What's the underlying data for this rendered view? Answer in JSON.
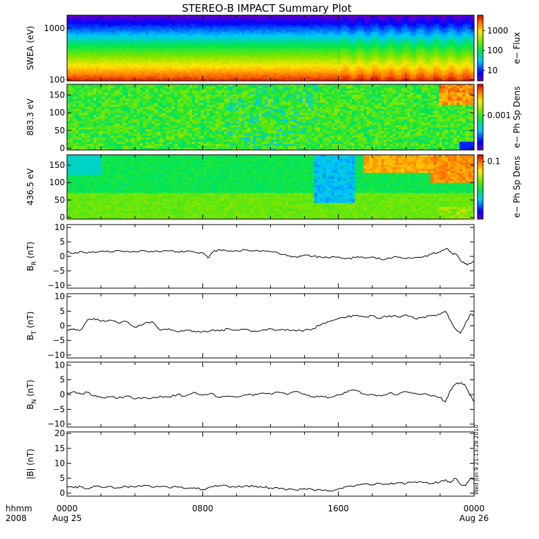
{
  "title": "STEREO-B IMPACT Summary Plot",
  "stamp": "Wed Jun  9 21:13:28 2010",
  "time_axis": {
    "caption_top": "hhmm",
    "caption_bottom": "2008",
    "ticks": [
      {
        "hours": 0,
        "label": "0000",
        "date": "Aug 25"
      },
      {
        "hours": 8,
        "label": "0800",
        "date": ""
      },
      {
        "hours": 16,
        "label": "1600",
        "date": ""
      },
      {
        "hours": 24,
        "label": "0000",
        "date": "Aug 26"
      }
    ],
    "range_hours": [
      0,
      24
    ]
  },
  "chart_data": [
    {
      "type": "heatmap",
      "id": "swea",
      "ylabel": "SWEA (eV)",
      "yscale": "log",
      "ylim": [
        95,
        1800
      ],
      "yticks": [
        {
          "v": 100,
          "label": "100"
        },
        {
          "v": 1000,
          "label": "1000"
        }
      ],
      "colorbar": {
        "label": "e− Flux",
        "scale": "log",
        "range": [
          3,
          6000
        ],
        "ticks": [
          {
            "v": 10,
            "label": "10"
          },
          {
            "v": 100,
            "label": "100"
          },
          {
            "v": 1000,
            "label": "1000"
          }
        ]
      },
      "profile": [
        {
          "energy": 100,
          "flux": 5000
        },
        {
          "energy": 130,
          "flux": 2000
        },
        {
          "energy": 200,
          "flux": 800
        },
        {
          "energy": 350,
          "flux": 300
        },
        {
          "energy": 600,
          "flux": 100
        },
        {
          "energy": 1000,
          "flux": 30
        },
        {
          "energy": 1400,
          "flux": 8
        },
        {
          "energy": 1800,
          "flux": 3
        }
      ]
    },
    {
      "type": "heatmap",
      "id": "pad883",
      "ylabel": "883.3 eV",
      "ylim": [
        -5,
        180
      ],
      "yticks": [
        {
          "v": 0,
          "label": "0"
        },
        {
          "v": 50,
          "label": "50"
        },
        {
          "v": 100,
          "label": "100"
        },
        {
          "v": 150,
          "label": "150"
        }
      ],
      "colorbar": {
        "label": "e− Ph Sp Dens",
        "scale": "log",
        "range": [
          0.0001,
          0.008
        ],
        "ticks": [
          {
            "v": 0.001,
            "label": "0.001"
          }
        ]
      },
      "note": "mostly green-yellow with red near 180 deg after 22 hr"
    },
    {
      "type": "heatmap",
      "id": "pad436",
      "ylabel": "436.5 eV",
      "ylim": [
        -5,
        180
      ],
      "yticks": [
        {
          "v": 0,
          "label": "0"
        },
        {
          "v": 50,
          "label": "50"
        },
        {
          "v": 100,
          "label": "100"
        },
        {
          "v": 150,
          "label": "150"
        }
      ],
      "colorbar": {
        "label": "e− Ph Sp Dens",
        "scale": "log",
        "range": [
          0.003,
          0.15
        ],
        "ticks": [
          {
            "v": 0.1,
            "label": "0.1"
          }
        ]
      },
      "note": "green with cyan parallel band, red anti-parallel band after 18 hr"
    },
    {
      "type": "line",
      "id": "br",
      "ylabel": "B",
      "ylabel_sub": "R",
      "ylabel_unit": " (nT)",
      "ylim": [
        -11,
        11
      ],
      "yticks": [
        {
          "v": -10,
          "label": "−10"
        },
        {
          "v": -5,
          "label": "−5"
        },
        {
          "v": 0,
          "label": "0"
        },
        {
          "v": 5,
          "label": "5"
        },
        {
          "v": 10,
          "label": "10"
        }
      ],
      "x": [
        0,
        0.4,
        0.8,
        1.2,
        1.6,
        2.0,
        2.5,
        3.0,
        3.5,
        4.0,
        4.5,
        5.0,
        5.5,
        6.0,
        6.5,
        7.0,
        7.5,
        8.0,
        8.3,
        8.6,
        9.0,
        9.5,
        10.0,
        10.5,
        11.0,
        11.5,
        12.0,
        12.5,
        13.0,
        13.5,
        14.0,
        14.5,
        15.0,
        15.5,
        16.0,
        16.5,
        17.0,
        17.5,
        18.0,
        18.5,
        19.0,
        19.5,
        20.0,
        20.5,
        21.0,
        21.5,
        22.0,
        22.4,
        22.7,
        23.0,
        23.3,
        23.6,
        24.0
      ],
      "y": [
        1.5,
        1.0,
        1.8,
        1.2,
        1.5,
        1.8,
        1.5,
        2.0,
        1.8,
        1.6,
        2.0,
        1.8,
        1.5,
        1.9,
        1.6,
        1.8,
        1.4,
        1.2,
        -0.5,
        1.5,
        2.3,
        1.8,
        2.0,
        2.2,
        1.8,
        2.0,
        1.6,
        1.0,
        0.2,
        -0.2,
        0.5,
        0.0,
        -0.3,
        -0.5,
        -0.2,
        -0.8,
        -0.4,
        -0.5,
        -0.2,
        -1.0,
        -0.6,
        -0.3,
        -0.8,
        -0.4,
        -0.2,
        0.8,
        1.5,
        2.8,
        1.0,
        0.5,
        -2.0,
        -3.0,
        -1.5
      ]
    },
    {
      "type": "line",
      "id": "bt",
      "ylabel": "B",
      "ylabel_sub": "T",
      "ylabel_unit": " (nT)",
      "ylim": [
        -11,
        11
      ],
      "yticks": [
        {
          "v": -10,
          "label": "−10"
        },
        {
          "v": -5,
          "label": "−5"
        },
        {
          "v": 0,
          "label": "0"
        },
        {
          "v": 5,
          "label": "5"
        },
        {
          "v": 10,
          "label": "10"
        }
      ],
      "x": [
        0,
        0.4,
        0.8,
        1.2,
        1.6,
        2.0,
        2.5,
        3.0,
        3.5,
        4.0,
        4.5,
        5.0,
        5.5,
        6.0,
        6.5,
        7.0,
        7.5,
        8.0,
        8.5,
        9.0,
        9.5,
        10.0,
        10.5,
        11.0,
        11.5,
        12.0,
        12.5,
        13.0,
        13.5,
        14.0,
        14.5,
        15.0,
        15.5,
        16.0,
        16.5,
        17.0,
        17.5,
        18.0,
        18.5,
        19.0,
        19.5,
        20.0,
        20.5,
        21.0,
        21.5,
        22.0,
        22.3,
        22.6,
        22.9,
        23.2,
        23.5,
        23.8,
        24.0
      ],
      "y": [
        -1.5,
        -1.0,
        -1.5,
        2.0,
        2.5,
        1.5,
        2.0,
        1.0,
        1.5,
        -0.5,
        0.5,
        1.5,
        -1.5,
        -1.0,
        -2.0,
        -1.5,
        -1.8,
        -2.0,
        -1.5,
        -1.8,
        -1.0,
        -1.5,
        -1.2,
        -1.8,
        -1.5,
        -1.0,
        -1.5,
        -1.2,
        -1.8,
        -1.5,
        -1.0,
        0.5,
        1.5,
        2.5,
        3.0,
        3.5,
        3.0,
        3.5,
        2.5,
        3.5,
        3.0,
        3.8,
        2.5,
        3.0,
        3.5,
        4.0,
        5.0,
        2.0,
        -1.0,
        -2.5,
        1.0,
        4.0,
        3.5
      ]
    },
    {
      "type": "line",
      "id": "bn",
      "ylabel": "B",
      "ylabel_sub": "N",
      "ylabel_unit": " (nT)",
      "ylim": [
        -11,
        11
      ],
      "yticks": [
        {
          "v": -10,
          "label": "−10"
        },
        {
          "v": -5,
          "label": "−5"
        },
        {
          "v": 0,
          "label": "0"
        },
        {
          "v": 5,
          "label": "5"
        },
        {
          "v": 10,
          "label": "10"
        }
      ],
      "x": [
        0,
        0.4,
        0.8,
        1.2,
        1.6,
        2.0,
        2.5,
        3.0,
        3.5,
        4.0,
        4.5,
        5.0,
        5.5,
        6.0,
        6.5,
        7.0,
        7.5,
        8.0,
        8.5,
        9.0,
        9.5,
        10.0,
        10.5,
        11.0,
        11.5,
        12.0,
        12.5,
        13.0,
        13.5,
        14.0,
        14.5,
        15.0,
        15.5,
        16.0,
        16.5,
        17.0,
        17.5,
        18.0,
        18.5,
        19.0,
        19.5,
        20.0,
        20.5,
        21.0,
        21.5,
        22.0,
        22.3,
        22.6,
        22.9,
        23.2,
        23.5,
        23.8,
        24.0
      ],
      "y": [
        0.5,
        1.0,
        0.2,
        0.8,
        -0.5,
        -1.0,
        -0.8,
        -1.2,
        -0.5,
        -1.5,
        -1.0,
        -1.2,
        -0.5,
        -0.8,
        0.0,
        -0.5,
        0.8,
        -0.2,
        0.5,
        -1.0,
        -0.5,
        -0.8,
        0.0,
        -0.3,
        0.5,
        0.2,
        0.8,
        0.0,
        1.0,
        0.2,
        -0.8,
        -0.5,
        -1.0,
        0.0,
        0.8,
        1.5,
        0.2,
        0.0,
        -0.5,
        0.5,
        0.0,
        1.0,
        0.5,
        0.2,
        -0.5,
        -1.0,
        -2.5,
        1.5,
        3.5,
        4.0,
        3.0,
        -0.5,
        -2.5
      ]
    },
    {
      "type": "line",
      "id": "bmag",
      "ylabel": "|B| (nT)",
      "ylim": [
        -1,
        20.5
      ],
      "yticks": [
        {
          "v": 0,
          "label": "0"
        },
        {
          "v": 5,
          "label": "5"
        },
        {
          "v": 10,
          "label": "10"
        },
        {
          "v": 15,
          "label": "15"
        },
        {
          "v": 20,
          "label": "20"
        }
      ],
      "x": [
        0,
        0.4,
        0.8,
        1.2,
        1.6,
        2.0,
        2.5,
        3.0,
        3.5,
        4.0,
        4.5,
        5.0,
        5.5,
        6.0,
        6.5,
        7.0,
        7.5,
        8.0,
        8.5,
        9.0,
        9.5,
        10.0,
        10.5,
        11.0,
        11.5,
        12.0,
        12.5,
        13.0,
        13.5,
        14.0,
        14.5,
        15.0,
        15.5,
        16.0,
        16.5,
        17.0,
        17.5,
        18.0,
        18.5,
        19.0,
        19.5,
        20.0,
        20.5,
        21.0,
        21.5,
        22.0,
        22.3,
        22.6,
        22.9,
        23.2,
        23.5,
        23.8,
        24.0
      ],
      "y": [
        2.0,
        1.8,
        2.2,
        1.5,
        2.5,
        2.0,
        2.3,
        1.8,
        2.2,
        2.0,
        2.5,
        2.0,
        2.2,
        1.8,
        2.0,
        1.6,
        1.8,
        1.2,
        2.2,
        2.5,
        2.3,
        2.0,
        2.5,
        2.2,
        2.0,
        1.8,
        1.5,
        1.2,
        1.0,
        1.5,
        1.2,
        1.0,
        0.8,
        1.5,
        2.2,
        2.5,
        3.0,
        2.8,
        3.2,
        3.0,
        3.5,
        3.2,
        3.8,
        3.5,
        3.2,
        3.8,
        4.5,
        3.5,
        5.0,
        3.0,
        2.5,
        5.0,
        4.5
      ]
    }
  ]
}
